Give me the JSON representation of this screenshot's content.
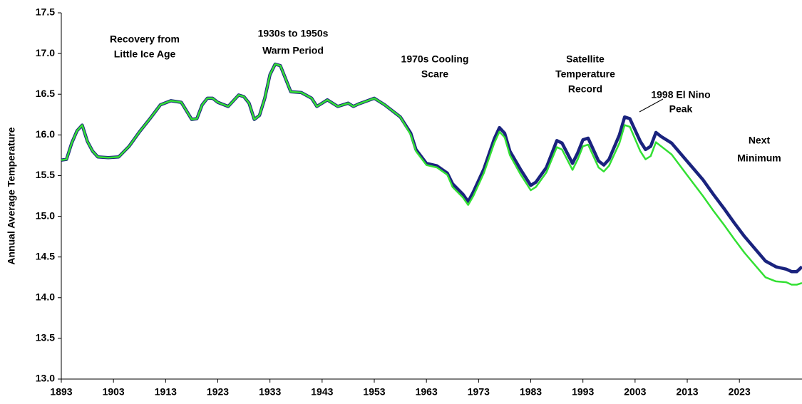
{
  "chart_data": {
    "type": "line",
    "y_label": "Annual Average Temperature",
    "annotations": [
      [
        "Recovery from",
        "Little Ice Age"
      ],
      [
        "1930s to 1950s",
        "Warm Period"
      ],
      [
        "1970s Cooling",
        "Scare"
      ],
      [
        "Satellite",
        "Temperature",
        "Record"
      ],
      [
        "1998 El Nino",
        "Peak"
      ],
      [
        "Next",
        "Minimum"
      ]
    ],
    "x": [
      1893,
      1894,
      1895,
      1896,
      1897,
      1898,
      1899,
      1900,
      1902,
      1904,
      1906,
      1908,
      1910,
      1912,
      1914,
      1916,
      1918,
      1919,
      1920,
      1921,
      1922,
      1923,
      1925,
      1927,
      1928,
      1929,
      1930,
      1931,
      1932,
      1933,
      1934,
      1935,
      1936,
      1937,
      1939,
      1941,
      1942,
      1944,
      1946,
      1948,
      1949,
      1950,
      1953,
      1955,
      1958,
      1960,
      1961,
      1963,
      1965,
      1967,
      1968,
      1970,
      1971,
      1972,
      1974,
      1976,
      1977,
      1978,
      1979,
      1981,
      1983,
      1984,
      1986,
      1988,
      1989,
      1991,
      1992,
      1993,
      1994,
      1996,
      1997,
      1998,
      2000,
      2001,
      2002,
      2004,
      2005,
      2006,
      2007,
      2008,
      2010,
      2012,
      2014,
      2016,
      2018,
      2020,
      2022,
      2024,
      2026,
      2028,
      2030,
      2032,
      2033,
      2034,
      2035
    ],
    "series": [
      {
        "color": "#1a237e",
        "values": [
          15.69,
          15.7,
          15.9,
          16.05,
          16.12,
          15.92,
          15.8,
          15.73,
          15.72,
          15.73,
          15.86,
          16.04,
          16.2,
          16.37,
          16.42,
          16.4,
          16.19,
          16.2,
          16.37,
          16.45,
          16.45,
          16.4,
          16.35,
          16.49,
          16.47,
          16.39,
          16.19,
          16.24,
          16.45,
          16.74,
          16.87,
          16.85,
          16.69,
          16.53,
          16.52,
          16.45,
          16.35,
          16.43,
          16.35,
          16.39,
          16.35,
          16.38,
          16.45,
          16.37,
          16.22,
          16.02,
          15.82,
          15.65,
          15.62,
          15.53,
          15.4,
          15.27,
          15.18,
          15.3,
          15.58,
          15.95,
          16.09,
          16.02,
          15.8,
          15.58,
          15.38,
          15.42,
          15.6,
          15.93,
          15.9,
          15.65,
          15.78,
          15.94,
          15.96,
          15.68,
          15.63,
          15.7,
          16.0,
          16.22,
          16.2,
          15.92,
          15.82,
          15.86,
          16.03,
          15.98,
          15.9,
          15.75,
          15.6,
          15.45,
          15.27,
          15.1,
          14.92,
          14.75,
          14.6,
          14.45,
          14.38,
          14.35,
          14.32,
          14.32,
          14.38
        ]
      },
      {
        "color": "#33e033",
        "values": [
          15.69,
          15.7,
          15.9,
          16.05,
          16.12,
          15.92,
          15.8,
          15.73,
          15.72,
          15.73,
          15.86,
          16.04,
          16.2,
          16.37,
          16.42,
          16.4,
          16.19,
          16.2,
          16.37,
          16.45,
          16.45,
          16.4,
          16.35,
          16.49,
          16.47,
          16.39,
          16.19,
          16.24,
          16.45,
          16.74,
          16.87,
          16.85,
          16.69,
          16.53,
          16.52,
          16.45,
          16.35,
          16.43,
          16.35,
          16.39,
          16.35,
          16.38,
          16.45,
          16.37,
          16.22,
          16.0,
          15.8,
          15.63,
          15.6,
          15.51,
          15.36,
          15.23,
          15.14,
          15.25,
          15.53,
          15.9,
          16.04,
          15.97,
          15.75,
          15.52,
          15.32,
          15.36,
          15.54,
          15.85,
          15.82,
          15.57,
          15.7,
          15.86,
          15.88,
          15.6,
          15.55,
          15.62,
          15.9,
          16.12,
          16.1,
          15.8,
          15.7,
          15.74,
          15.91,
          15.86,
          15.76,
          15.59,
          15.42,
          15.25,
          15.07,
          14.9,
          14.72,
          14.55,
          14.4,
          14.25,
          14.2,
          14.19,
          14.16,
          14.16,
          14.18
        ]
      }
    ],
    "xlim": [
      1893,
      2035
    ],
    "xticks": [
      1893,
      1903,
      1913,
      1923,
      1933,
      1943,
      1953,
      1963,
      1973,
      1983,
      1993,
      2003,
      2013,
      2023
    ],
    "ylim": [
      13,
      17.5
    ],
    "yticks": [
      {
        "value": 13,
        "label": "13.0"
      },
      {
        "value": 13.5,
        "label": "13.5"
      },
      {
        "value": 14,
        "label": "14.0"
      },
      {
        "value": 14.5,
        "label": "14.5"
      },
      {
        "value": 15,
        "label": "15.0"
      },
      {
        "value": 15.5,
        "label": "15.5"
      },
      {
        "value": 16,
        "label": "16.0"
      },
      {
        "value": 16.5,
        "label": "16.5"
      },
      {
        "value": 17,
        "label": "17.0"
      },
      {
        "value": 17.5,
        "label": "17.5"
      }
    ],
    "grid": false
  }
}
